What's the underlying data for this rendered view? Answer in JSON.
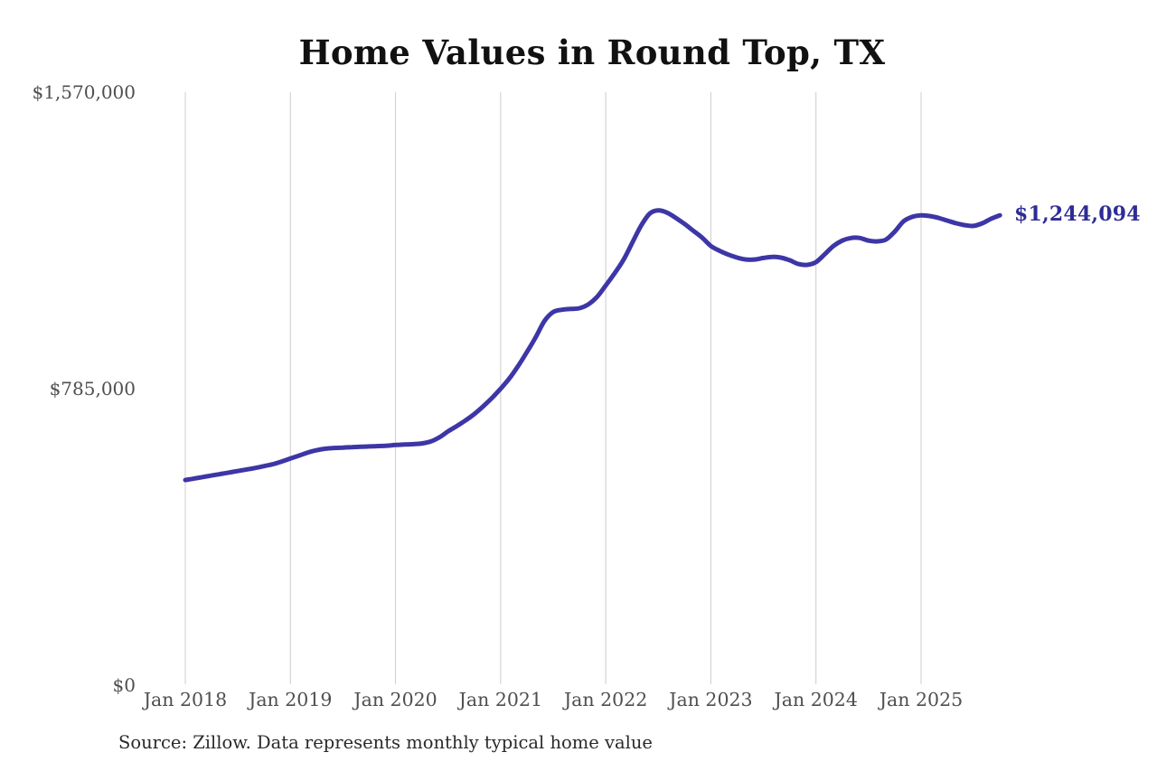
{
  "page": {
    "source_note": "Source: Zillow. Data represents monthly typical home value"
  },
  "chart_data": {
    "type": "line",
    "title": "Home Values in Round Top, TX",
    "series_name": "Monthly typical home value",
    "frequency": "monthly",
    "x_start": "2018-01",
    "x_end": "2025-10",
    "x_tick_labels": [
      "Jan 2018",
      "Jan 2019",
      "Jan 2020",
      "Jan 2021",
      "Jan 2022",
      "Jan 2023",
      "Jan 2024",
      "Jan 2025"
    ],
    "y_ticks": [
      {
        "value": 0,
        "label": "$0"
      },
      {
        "value": 785000,
        "label": "$785,000"
      },
      {
        "value": 1570000,
        "label": "$1,570,000"
      }
    ],
    "ylim": [
      0,
      1570000
    ],
    "grid": "vertical",
    "legend": "none",
    "end_label": "$1,244,094",
    "final_value": 1244094,
    "values": [
      543000,
      547000,
      551000,
      555000,
      559000,
      563000,
      567000,
      571000,
      575000,
      580000,
      585000,
      592000,
      600000,
      608000,
      616000,
      622000,
      626000,
      628000,
      629000,
      630000,
      631000,
      632000,
      633000,
      634000,
      636000,
      637000,
      638000,
      640000,
      645000,
      656000,
      672000,
      686000,
      701000,
      718000,
      738000,
      760000,
      785000,
      812000,
      845000,
      882000,
      921000,
      964000,
      988000,
      994000,
      996000,
      998000,
      1008000,
      1028000,
      1058000,
      1090000,
      1125000,
      1170000,
      1215000,
      1248000,
      1257000,
      1251000,
      1237000,
      1221000,
      1203000,
      1185000,
      1163000,
      1150000,
      1140000,
      1132000,
      1127000,
      1127000,
      1131000,
      1134000,
      1132000,
      1125000,
      1115000,
      1113000,
      1120000,
      1141000,
      1163000,
      1177000,
      1184000,
      1184000,
      1177000,
      1175000,
      1180000,
      1201000,
      1228000,
      1240000,
      1244000,
      1242000,
      1237000,
      1230000,
      1223000,
      1218000,
      1216000,
      1223000,
      1235000,
      1244094
    ],
    "colors": {
      "line": "#3d36a6",
      "end_label": "#2e2d96",
      "grid": "#cccccc",
      "axis_text": "#4f4f4f",
      "title": "#111111",
      "source": "#2a2a2a"
    }
  }
}
